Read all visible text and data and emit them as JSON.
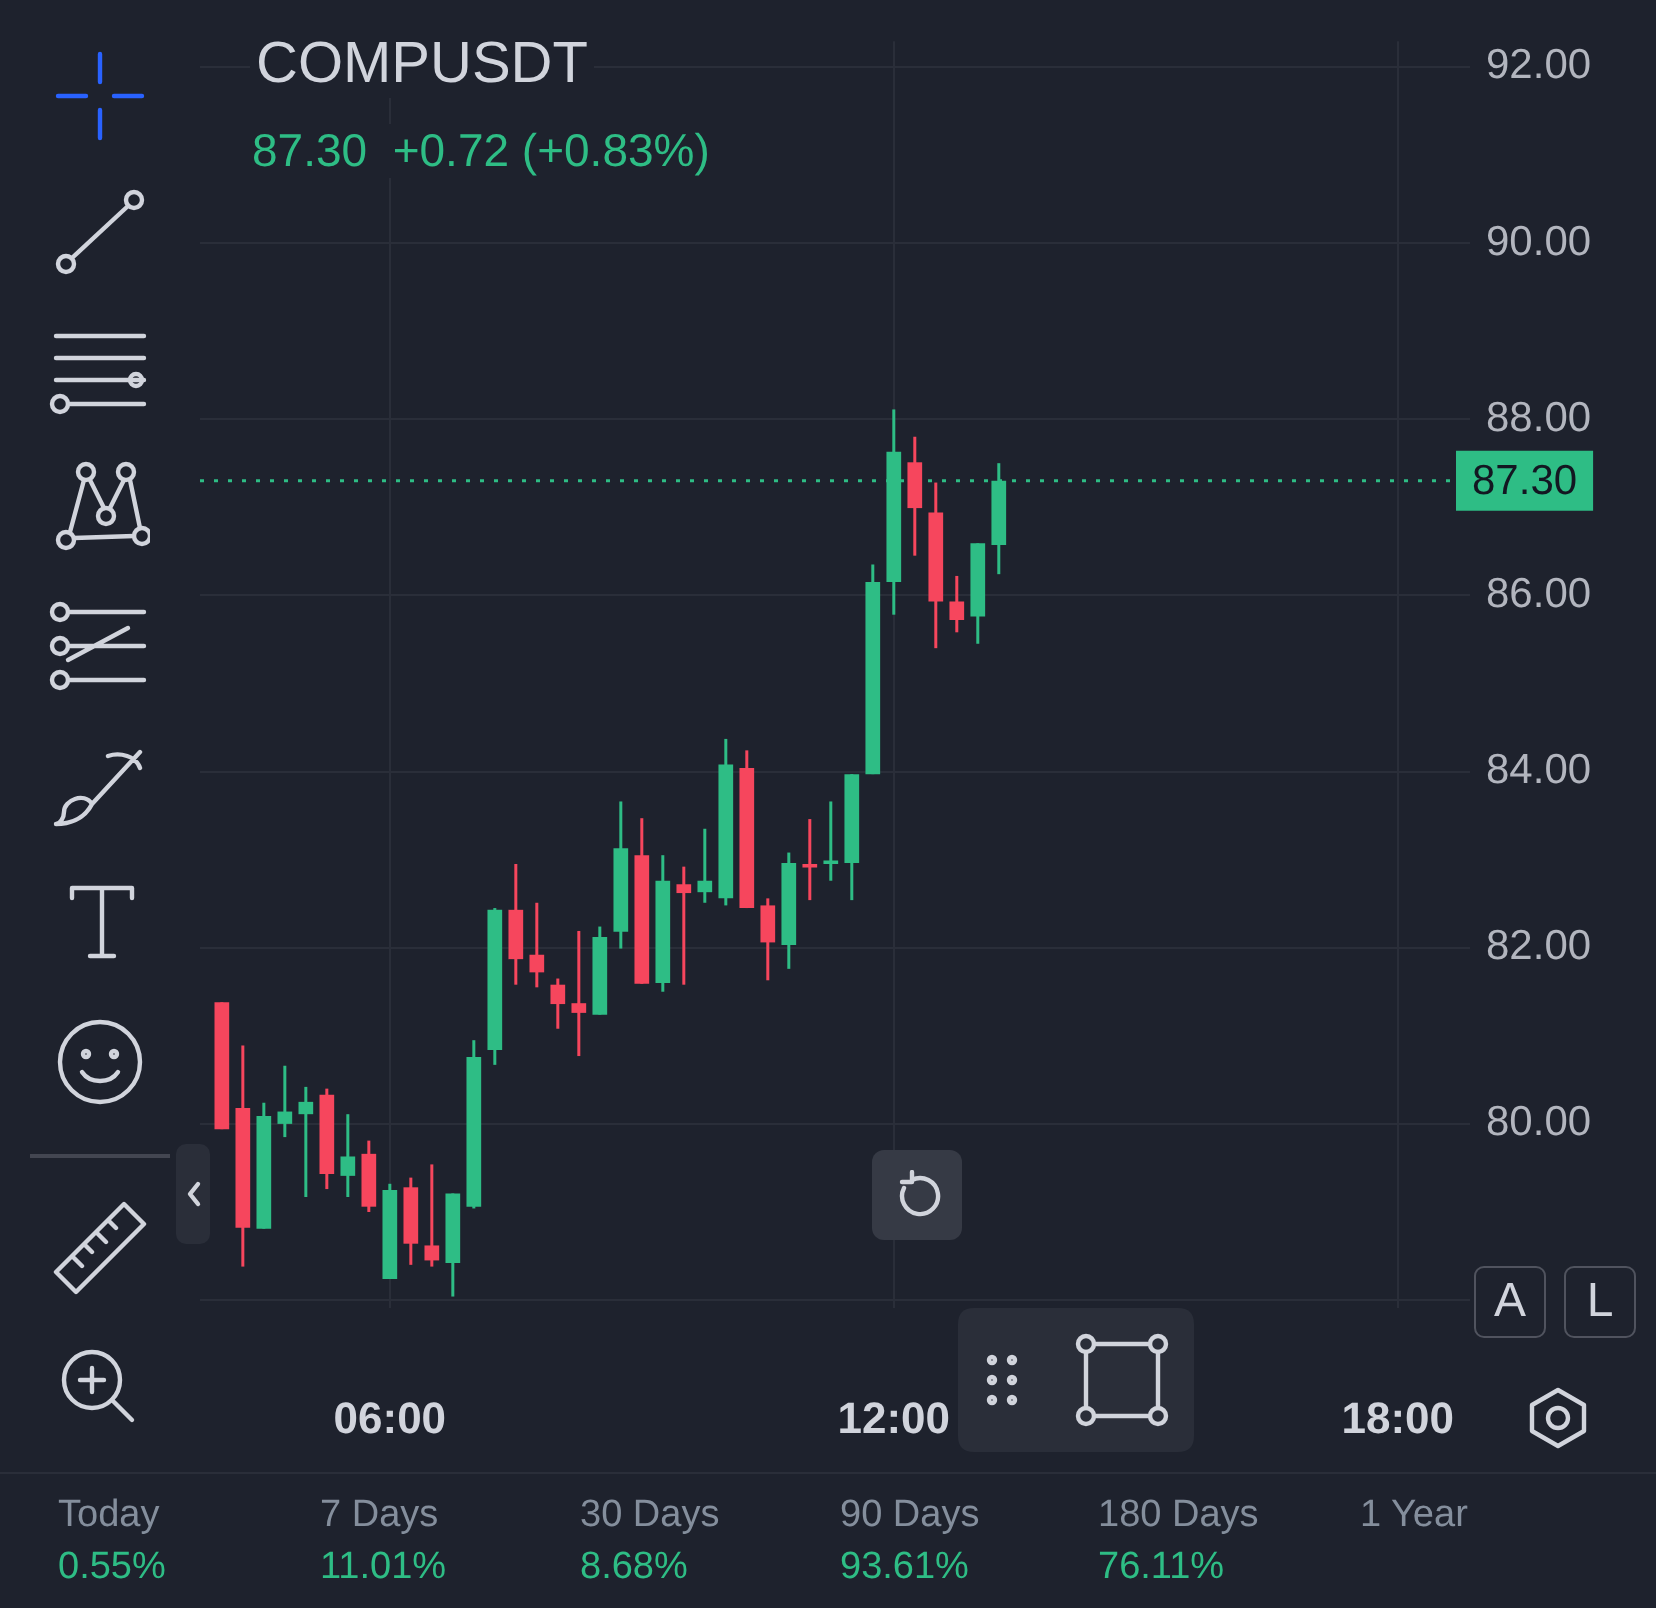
{
  "chart_data": {
    "type": "candlestick",
    "title": "COMPUSDT",
    "subtitle": "87.30  +0.72 (+0.83%)",
    "x": [
      4,
      4.25,
      4.5,
      4.75,
      5,
      5.25,
      5.5,
      5.75,
      6,
      6.25,
      6.5,
      6.75,
      7,
      7.25,
      7.5,
      7.75,
      8,
      8.25,
      8.5,
      8.75,
      9,
      9.25,
      9.5,
      9.75,
      10,
      10.25,
      10.5,
      10.75,
      11,
      11.25,
      11.5,
      11.75,
      12,
      12.25,
      12.5,
      12.75,
      13,
      13.25
    ],
    "ohlc": [
      [
        81.38,
        81.38,
        79.94,
        79.94
      ],
      [
        80.18,
        80.89,
        78.38,
        78.82
      ],
      [
        78.81,
        80.24,
        78.81,
        80.09
      ],
      [
        80.0,
        80.66,
        79.85,
        80.14
      ],
      [
        80.11,
        80.42,
        79.17,
        80.25
      ],
      [
        80.33,
        80.4,
        79.26,
        79.43
      ],
      [
        79.41,
        80.11,
        79.17,
        79.63
      ],
      [
        79.66,
        79.81,
        79.0,
        79.06
      ],
      [
        78.24,
        79.32,
        78.24,
        79.25
      ],
      [
        79.28,
        79.39,
        78.4,
        78.64
      ],
      [
        78.62,
        79.54,
        78.38,
        78.45
      ],
      [
        78.42,
        79.21,
        78.04,
        79.21
      ],
      [
        79.06,
        80.95,
        79.04,
        80.76
      ],
      [
        80.84,
        82.45,
        80.67,
        82.43
      ],
      [
        82.43,
        82.95,
        81.58,
        81.87
      ],
      [
        81.92,
        82.51,
        81.55,
        81.72
      ],
      [
        81.58,
        81.65,
        81.08,
        81.36
      ],
      [
        81.37,
        82.19,
        80.77,
        81.26
      ],
      [
        81.24,
        82.24,
        81.24,
        82.12
      ],
      [
        82.18,
        83.66,
        81.99,
        83.13
      ],
      [
        83.05,
        83.47,
        81.59,
        81.59
      ],
      [
        81.6,
        83.05,
        81.5,
        82.76
      ],
      [
        82.72,
        82.92,
        81.58,
        82.62
      ],
      [
        82.63,
        83.35,
        82.51,
        82.76
      ],
      [
        82.56,
        84.37,
        82.48,
        84.08
      ],
      [
        84.04,
        84.24,
        82.45,
        82.45
      ],
      [
        82.48,
        82.56,
        81.63,
        82.06
      ],
      [
        82.03,
        83.08,
        81.76,
        82.96
      ],
      [
        82.95,
        83.46,
        82.54,
        82.91
      ],
      [
        82.95,
        83.66,
        82.76,
        82.99
      ],
      [
        82.96,
        83.97,
        82.54,
        83.97
      ],
      [
        83.97,
        86.35,
        83.97,
        86.15
      ],
      [
        86.15,
        88.11,
        85.78,
        87.63
      ],
      [
        87.51,
        87.8,
        86.45,
        86.99
      ],
      [
        86.94,
        87.28,
        85.4,
        85.93
      ],
      [
        85.93,
        86.22,
        85.58,
        85.72
      ],
      [
        85.76,
        86.59,
        85.45,
        86.59
      ],
      [
        86.57,
        87.5,
        86.24,
        87.3
      ]
    ],
    "xlim": [
      3.74,
      18.86
    ],
    "xticks": [
      {
        "value": 6,
        "label": "06:00"
      },
      {
        "value": 12,
        "label": "12:00"
      },
      {
        "value": 18,
        "label": "18:00"
      }
    ],
    "ylim": [
      77.91,
      92.29
    ],
    "yticks": [
      {
        "value": 78,
        "label": null
      },
      {
        "value": 80,
        "label": "80.00"
      },
      {
        "value": 82,
        "label": "82.00"
      },
      {
        "value": 84,
        "label": "84.00"
      },
      {
        "value": 86,
        "label": "86.00"
      },
      {
        "value": 88,
        "label": "88.00"
      },
      {
        "value": 90,
        "label": "90.00"
      },
      {
        "value": 92,
        "label": "92.00"
      }
    ],
    "grid": true,
    "ref_lines": [
      {
        "axis": "y",
        "value": 87.3,
        "label": "87.30",
        "color": "#2ebd85",
        "line_style": "dotted"
      }
    ],
    "annotations": [
      "Today",
      "0.55%",
      "7 Days",
      "11.01%",
      "30 Days",
      "8.68%",
      "90 Days",
      "93.61%",
      "180 Days",
      "76.11%",
      "1 Year",
      "A",
      "L"
    ]
  }
}
